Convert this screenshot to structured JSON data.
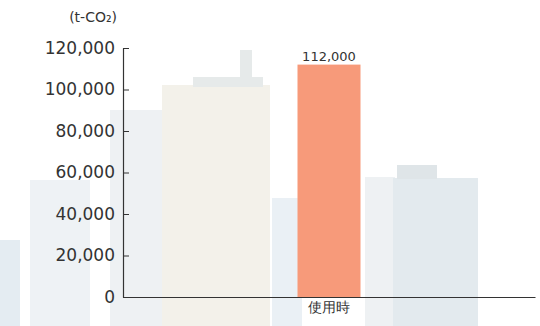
{
  "chart_data": {
    "type": "bar",
    "y_label": "(t-CO₂)",
    "categories": [
      "使用時"
    ],
    "values": [
      112000
    ],
    "value_labels": [
      "112,000"
    ],
    "data_labels": true,
    "color": "#f79a7a",
    "ylim": [
      0,
      120000
    ],
    "yticks": [
      0,
      {
        "value": 20000,
        "label": "20,000"
      },
      {
        "value": 40000,
        "label": "40,000"
      },
      {
        "value": 60000,
        "label": "60,000"
      },
      {
        "value": 80000,
        "label": "80,000"
      },
      {
        "value": 100000,
        "label": "100,000"
      },
      {
        "value": 120000,
        "label": "120,000"
      }
    ],
    "grid": false
  }
}
